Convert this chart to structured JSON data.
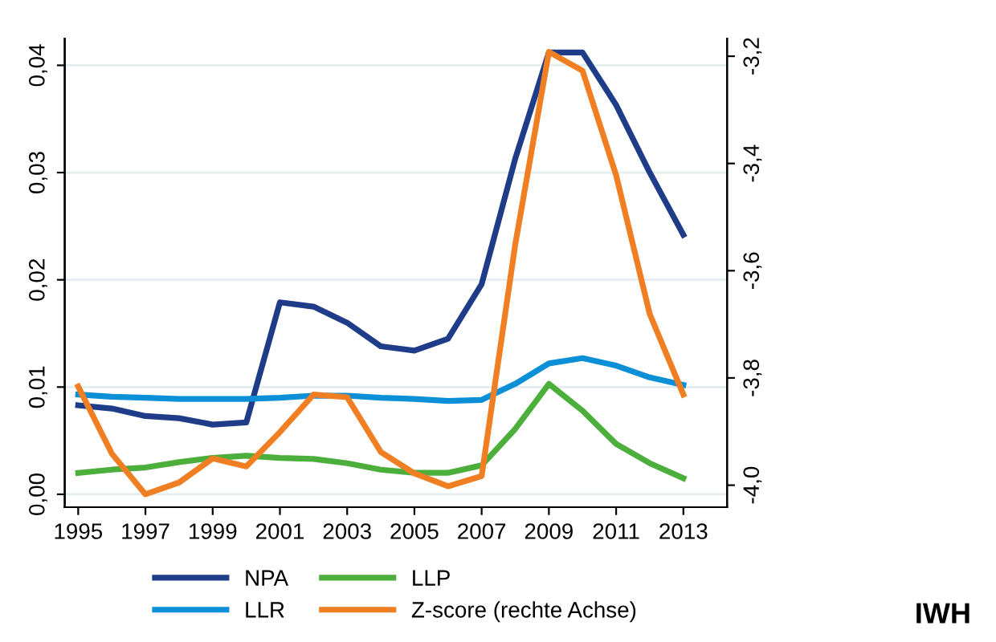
{
  "chart_data": {
    "type": "line",
    "x": [
      1995,
      1996,
      1997,
      1998,
      1999,
      2000,
      2001,
      2002,
      2003,
      2004,
      2005,
      2006,
      2007,
      2008,
      2009,
      2010,
      2011,
      2012,
      2013
    ],
    "series": [
      {
        "name": "NPA",
        "color": "#1f3c88",
        "values": [
          0.0083,
          0.008,
          0.0073,
          0.0071,
          0.0065,
          0.0067,
          0.0179,
          0.0175,
          0.016,
          0.0138,
          0.0134,
          0.0145,
          0.0196,
          0.0313,
          0.0412,
          0.0412,
          0.0363,
          0.03,
          0.0242
        ]
      },
      {
        "name": "LLR",
        "color": "#0b8fd6",
        "values": [
          0.0093,
          0.0091,
          0.009,
          0.0089,
          0.0089,
          0.0089,
          0.009,
          0.0092,
          0.0092,
          0.009,
          0.0089,
          0.0087,
          0.0088,
          0.0103,
          0.0122,
          0.0127,
          0.012,
          0.0109,
          0.0102
        ]
      },
      {
        "name": "LLP",
        "color": "#4caf3c",
        "values": [
          0.002,
          0.0023,
          0.0025,
          0.003,
          0.0034,
          0.0036,
          0.0034,
          0.0033,
          0.0029,
          0.0023,
          0.002,
          0.002,
          0.0027,
          0.0061,
          0.0103,
          0.0078,
          0.0047,
          0.0029,
          0.0015
        ]
      },
      {
        "name": "Z-score (rechte Achse)",
        "color": "#f07f23",
        "axis": "y2",
        "values": [
          -3.816,
          -3.941,
          -4.017,
          -3.995,
          -3.95,
          -3.965,
          -3.901,
          -3.831,
          -3.836,
          -3.938,
          -3.978,
          -4.002,
          -3.983,
          -3.551,
          -3.192,
          -3.227,
          -3.422,
          -3.681,
          -3.831
        ]
      }
    ],
    "xlim": [
      1994.6,
      2014.3
    ],
    "xticks": [
      1995,
      1997,
      1999,
      2001,
      2003,
      2005,
      2007,
      2009,
      2011,
      2013
    ],
    "ylim": [
      -0.0012,
      0.0425
    ],
    "yticks": [
      {
        "value": 0,
        "label": "0,00"
      },
      {
        "value": 0.01,
        "label": "0,01"
      },
      {
        "value": 0.02,
        "label": "0,02"
      },
      {
        "value": 0.03,
        "label": "0,03"
      },
      {
        "value": 0.04,
        "label": "0,04"
      }
    ],
    "y2lim": [
      -4.041,
      -3.167
    ],
    "y2ticks": [
      {
        "value": -4.0,
        "label": "-4,0"
      },
      {
        "value": -3.8,
        "label": "-3,8"
      },
      {
        "value": -3.6,
        "label": "-3,6"
      },
      {
        "value": -3.4,
        "label": "-3,4"
      },
      {
        "value": -3.2,
        "label": "-3,2"
      }
    ],
    "grid": "y",
    "legend": "bottom",
    "line_style": "solid",
    "marker": "none",
    "annotations": [
      "IWH"
    ]
  }
}
